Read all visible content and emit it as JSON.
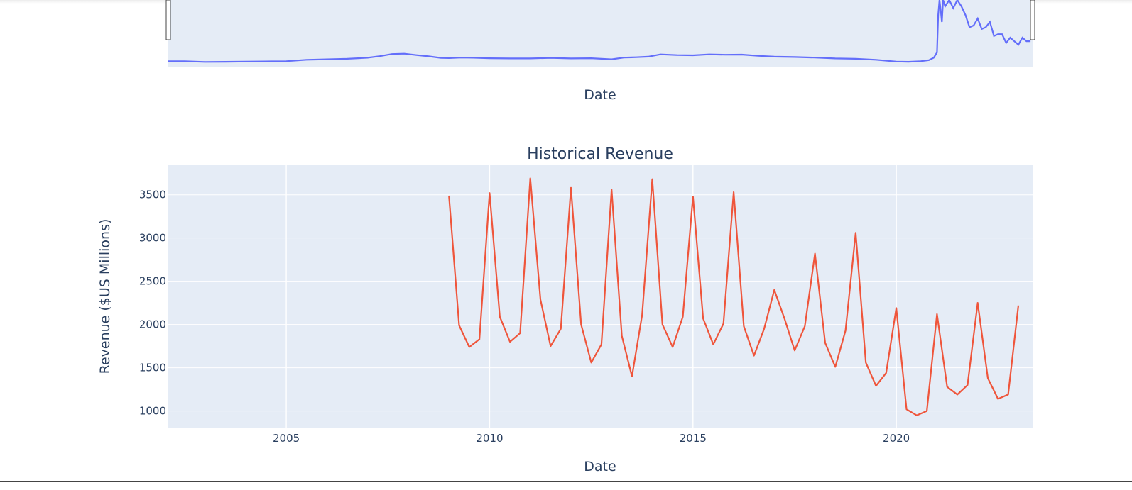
{
  "colors": {
    "plot_bg": "#e5ecf6",
    "grid": "#ffffff",
    "revenue_line": "#ef553b",
    "price_line": "#636efa",
    "text": "#2a3f5f"
  },
  "chart_data": [
    {
      "type": "line",
      "title": "",
      "xlabel": "Date",
      "ylabel": "",
      "x_range": [
        2002.1,
        2023.35
      ],
      "y_range": [
        0,
        35
      ],
      "grid": false,
      "series": [
        {
          "name": "",
          "x": [
            2002.1,
            2002.5,
            2003.0,
            2003.5,
            2004.0,
            2004.5,
            2005.0,
            2005.5,
            2006.0,
            2006.5,
            2007.0,
            2007.3,
            2007.6,
            2007.9,
            2008.2,
            2008.5,
            2008.8,
            2009.0,
            2009.3,
            2009.6,
            2010.0,
            2010.5,
            2011.0,
            2011.5,
            2012.0,
            2012.5,
            2013.0,
            2013.3,
            2013.6,
            2013.9,
            2014.2,
            2014.6,
            2015.0,
            2015.4,
            2015.8,
            2016.2,
            2016.6,
            2017.0,
            2017.5,
            2018.0,
            2018.5,
            2019.0,
            2019.5,
            2020.0,
            2020.3,
            2020.6,
            2020.8,
            2020.92,
            2021.0,
            2021.03,
            2021.06,
            2021.09,
            2021.12,
            2021.15,
            2021.2,
            2021.3,
            2021.4,
            2021.5,
            2021.6,
            2021.7,
            2021.8,
            2021.9,
            2022.0,
            2022.1,
            2022.2,
            2022.3,
            2022.4,
            2022.5,
            2022.6,
            2022.7,
            2022.8,
            2022.9,
            2023.0,
            2023.1,
            2023.2,
            2023.3
          ],
          "y": [
            1.5,
            1.5,
            1.1,
            1.2,
            1.3,
            1.4,
            1.5,
            2.3,
            2.6,
            2.9,
            3.5,
            4.4,
            5.6,
            5.8,
            5.0,
            4.3,
            3.4,
            3.3,
            3.6,
            3.5,
            3.2,
            3.1,
            3.1,
            3.4,
            3.1,
            3.2,
            2.6,
            3.6,
            3.8,
            4.1,
            5.4,
            5.0,
            4.9,
            5.4,
            5.2,
            5.3,
            4.6,
            4.1,
            3.9,
            3.6,
            3.1,
            2.9,
            2.3,
            1.3,
            1.2,
            1.5,
            2.1,
            3.5,
            6.5,
            28,
            38,
            31,
            24,
            40,
            33,
            38,
            32,
            39,
            33,
            28,
            21,
            22,
            26,
            20,
            21,
            24,
            16,
            17,
            17,
            12,
            15,
            13,
            11,
            15,
            13,
            13
          ]
        }
      ]
    },
    {
      "type": "line",
      "title": "Historical Revenue",
      "xlabel": "Date",
      "ylabel": "Revenue ($US Millions)",
      "x_range": [
        2002.1,
        2023.35
      ],
      "y_range": [
        800,
        3850
      ],
      "x_ticks": [
        2005,
        2010,
        2015,
        2020
      ],
      "y_ticks": [
        1000,
        1500,
        2000,
        2500,
        3000,
        3500
      ],
      "grid": true,
      "series": [
        {
          "name": "",
          "x": [
            2009.0,
            2009.25,
            2009.5,
            2009.75,
            2010.0,
            2010.25,
            2010.5,
            2010.75,
            2011.0,
            2011.25,
            2011.5,
            2011.75,
            2012.0,
            2012.25,
            2012.5,
            2012.75,
            2013.0,
            2013.25,
            2013.5,
            2013.75,
            2014.0,
            2014.25,
            2014.5,
            2014.75,
            2015.0,
            2015.25,
            2015.5,
            2015.75,
            2016.0,
            2016.25,
            2016.5,
            2016.75,
            2017.0,
            2017.25,
            2017.5,
            2017.75,
            2018.0,
            2018.25,
            2018.5,
            2018.75,
            2019.0,
            2019.25,
            2019.5,
            2019.75,
            2020.0,
            2020.25,
            2020.5,
            2020.75,
            2021.0,
            2021.25,
            2021.5,
            2021.75,
            2022.0,
            2022.25,
            2022.5,
            2022.75,
            2023.0
          ],
          "y": [
            3490,
            1990,
            1740,
            1830,
            3520,
            2090,
            1800,
            1900,
            3690,
            2290,
            1750,
            1950,
            3580,
            2000,
            1560,
            1770,
            3560,
            1870,
            1400,
            2110,
            3680,
            2000,
            1740,
            2090,
            3480,
            2070,
            1770,
            2010,
            3530,
            1980,
            1640,
            1950,
            2400,
            2070,
            1700,
            1980,
            2820,
            1790,
            1510,
            1930,
            3060,
            1560,
            1290,
            1440,
            2190,
            1020,
            950,
            1000,
            2120,
            1280,
            1190,
            1300,
            2250,
            1380,
            1140,
            1190,
            2220
          ]
        }
      ]
    }
  ]
}
